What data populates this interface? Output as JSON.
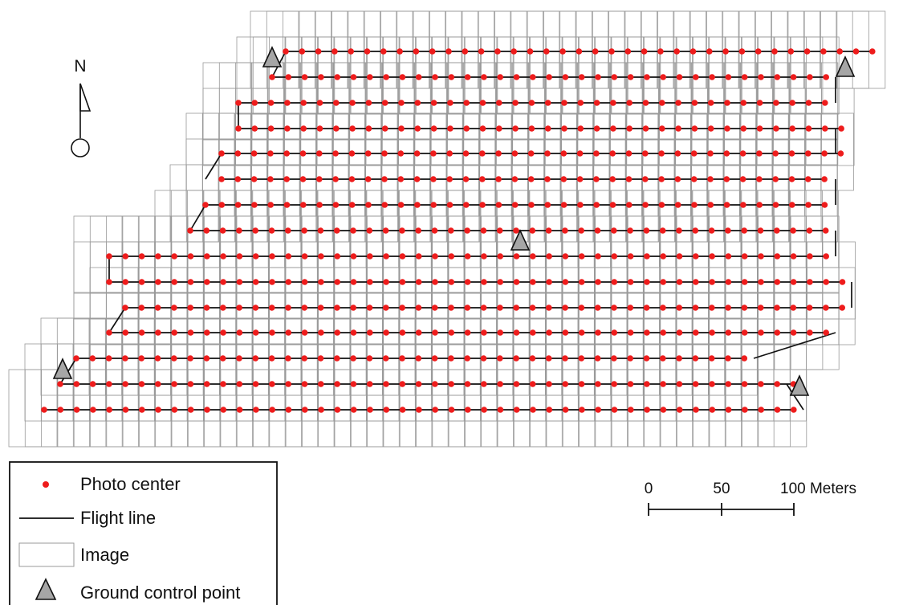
{
  "north_arrow": {
    "label": "N"
  },
  "legend": {
    "photo_center": "Photo center",
    "flight_line": "Flight line",
    "image": "Image",
    "ground_control_point": "Ground control point"
  },
  "scale_bar": {
    "tick_0": "0",
    "tick_50": "50",
    "tick_100": "100 Meters"
  },
  "colors": {
    "photo_center": "#ee1c1c",
    "flight_line": "#111111",
    "image_outline": "#9a9a9a",
    "gcp_fill": "#a6a6a6",
    "legend_border": "#111111"
  },
  "icons": [
    "north-arrow-icon",
    "photo-center-marker",
    "ground-control-point-icon"
  ]
}
